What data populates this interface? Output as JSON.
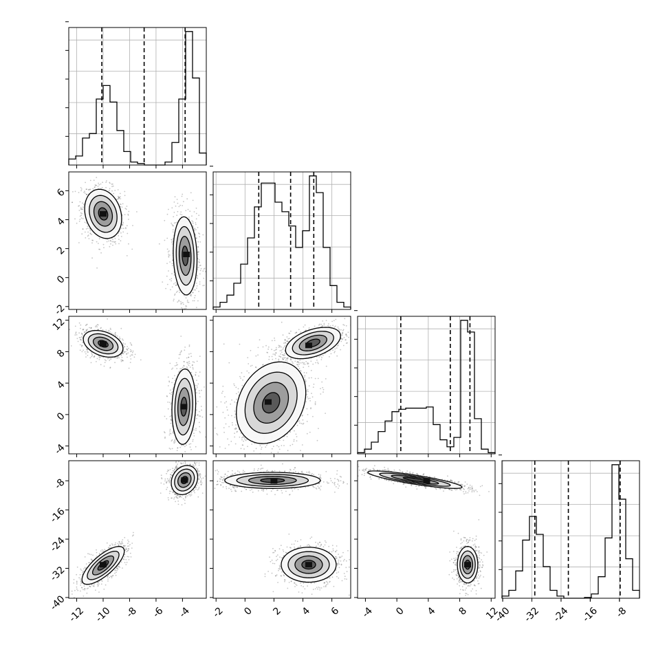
{
  "chart_data": {
    "type": "corner",
    "variables": 4,
    "colors": {
      "hist": "#000000",
      "scatter": "#555555",
      "grid": "#b0b0b0",
      "contour_fill": "#555555"
    },
    "grid": true,
    "axes": {
      "x1": {
        "ylim": [
          -12.6,
          -2.2
        ],
        "ticks": [
          "-12",
          "-10",
          "-8",
          "-6",
          "-4"
        ],
        "tick_values": [
          -12,
          -10,
          -8,
          -6,
          -4
        ]
      },
      "x2": {
        "ylim": [
          -2.2,
          7.3
        ],
        "ticks": [
          "-2",
          "0",
          "2",
          "4",
          "6"
        ],
        "tick_values": [
          -2,
          0,
          2,
          4,
          6
        ]
      },
      "x3": {
        "ylim": [
          -5,
          12.5
        ],
        "ticks": [
          "-4",
          "0",
          "4",
          "8",
          "12"
        ],
        "tick_values": [
          -4,
          0,
          4,
          8,
          12
        ]
      },
      "x4": {
        "ylim": [
          -40.2,
          -2.5
        ],
        "ticks": [
          "-40",
          "-32",
          "-24",
          "-16",
          "-8"
        ],
        "tick_values": [
          -40,
          -32,
          -24,
          -16,
          -8
        ]
      }
    },
    "diagonal": [
      {
        "var": "x1",
        "quantiles": [
          -10.1,
          -6.9,
          -3.8
        ],
        "bin_edges": [
          -12.6,
          -12.08,
          -11.56,
          -11.04,
          -10.52,
          -10.0,
          -9.48,
          -8.96,
          -8.44,
          -7.92,
          -7.4,
          -6.88,
          -6.36,
          -5.84,
          -5.32,
          -4.8,
          -4.28,
          -3.76,
          -3.24,
          -2.72,
          -2.2
        ],
        "counts": [
          0.4,
          0.6,
          1.8,
          2.1,
          4.4,
          5.3,
          4.2,
          2.3,
          0.9,
          0.2,
          0.1,
          0,
          0,
          0,
          0.2,
          1.5,
          4.4,
          8.9,
          5.8,
          0.8
        ]
      },
      {
        "var": "x2",
        "quantiles": [
          0.95,
          3.15,
          4.75
        ],
        "bin_edges": [
          -2.2,
          -1.725,
          -1.25,
          -0.775,
          -0.3,
          0.175,
          0.65,
          1.125,
          1.6,
          2.075,
          2.55,
          3.025,
          3.5,
          3.975,
          4.45,
          4.925,
          5.4,
          5.875,
          6.35,
          6.825,
          7.3
        ],
        "counts": [
          0.1,
          0.3,
          0.6,
          1.1,
          1.9,
          3.0,
          4.3,
          5.3,
          5.3,
          4.5,
          4.1,
          3.5,
          2.6,
          3.3,
          5.6,
          4.9,
          2.6,
          1.0,
          0.3,
          0.1
        ]
      },
      {
        "var": "x3",
        "quantiles": [
          0.5,
          6.8,
          9.3
        ],
        "bin_edges": [
          -5,
          -4.125,
          -3.25,
          -2.375,
          -1.5,
          -0.625,
          0.25,
          1.125,
          2.0,
          2.875,
          3.75,
          4.625,
          5.5,
          6.375,
          7.25,
          8.125,
          9.0,
          9.875,
          10.75,
          11.625,
          12.5
        ],
        "counts": [
          0.1,
          0.4,
          1.0,
          1.9,
          2.8,
          3.6,
          3.8,
          3.9,
          3.9,
          3.9,
          4.0,
          2.5,
          1.2,
          0.6,
          1.4,
          11.4,
          10.4,
          3.0,
          0.4,
          0.1
        ]
      },
      {
        "var": "x4",
        "quantiles": [
          -31.2,
          -22.0,
          -7.8
        ],
        "bin_edges": [
          -40.2,
          -38.315,
          -36.43,
          -34.545,
          -32.66,
          -30.775,
          -28.89,
          -27.005,
          -25.12,
          -23.235,
          -21.35,
          -19.465,
          -17.58,
          -15.695,
          -13.81,
          -11.925,
          -10.04,
          -8.155,
          -6.27,
          -4.385,
          -2.5
        ],
        "counts": [
          0.3,
          1.1,
          3.8,
          8.1,
          11.4,
          8.9,
          4.4,
          1.1,
          0.3,
          0,
          0,
          0,
          0.1,
          0.6,
          3.0,
          8.4,
          18.6,
          13.8,
          5.5,
          1.1
        ]
      }
    ],
    "pairs": [
      {
        "x": "x1",
        "y": "x2",
        "clusters": [
          {
            "cx": -10.0,
            "cy": 4.4,
            "sx": 0.7,
            "sy": 0.85,
            "rho": -0.2,
            "n": 900,
            "mode": [
              -10.0,
              4.4
            ]
          },
          {
            "cx": -3.8,
            "cy": 1.5,
            "sx": 0.45,
            "sy": 1.35,
            "rho": -0.1,
            "n": 900,
            "mode": [
              -3.7,
              1.6
            ]
          }
        ]
      },
      {
        "x": "x1",
        "y": "x3",
        "clusters": [
          {
            "cx": -10.0,
            "cy": 9.0,
            "sx": 0.75,
            "sy": 0.85,
            "rho": -0.35,
            "n": 900,
            "mode": [
              -10.0,
              9.0
            ]
          },
          {
            "cx": -3.9,
            "cy": 1.0,
            "sx": 0.45,
            "sy": 2.4,
            "rho": 0.1,
            "n": 900,
            "mode": [
              -3.9,
              1.0
            ]
          }
        ]
      },
      {
        "x": "x1",
        "y": "x4",
        "clusters": [
          {
            "cx": -10.0,
            "cy": -31.2,
            "sx": 0.8,
            "sy": 2.6,
            "rho": 0.75,
            "n": 900,
            "mode": [
              -10.0,
              -31.0
            ]
          },
          {
            "cx": -3.85,
            "cy": -7.8,
            "sx": 0.5,
            "sy": 2.0,
            "rho": 0.2,
            "n": 900,
            "mode": [
              -3.85,
              -7.8
            ]
          }
        ]
      },
      {
        "x": "x2",
        "y": "x3",
        "clusters": [
          {
            "cx": 1.8,
            "cy": 1.5,
            "sx": 1.2,
            "sy": 2.6,
            "rho": 0.25,
            "n": 1100,
            "mode": [
              1.6,
              1.6
            ]
          },
          {
            "cx": 4.7,
            "cy": 9.1,
            "sx": 0.95,
            "sy": 1.0,
            "rho": 0.45,
            "n": 900,
            "mode": [
              4.4,
              8.8
            ]
          }
        ]
      },
      {
        "x": "x2",
        "y": "x4",
        "clusters": [
          {
            "cx": 1.9,
            "cy": -7.9,
            "sx": 1.65,
            "sy": 1.1,
            "rho": 0.0,
            "n": 1000,
            "mode": [
              2.0,
              -8.0
            ]
          },
          {
            "cx": 4.4,
            "cy": -31.0,
            "sx": 0.95,
            "sy": 2.4,
            "rho": 0.0,
            "n": 900,
            "mode": [
              4.4,
              -31.0
            ]
          }
        ]
      },
      {
        "x": "x3",
        "y": "x4",
        "clusters": [
          {
            "cx": 2.3,
            "cy": -7.7,
            "sx": 3.0,
            "sy": 1.2,
            "rho": -0.85,
            "n": 1000,
            "mode": [
              3.8,
              -8.0
            ]
          },
          {
            "cx": 9.0,
            "cy": -31.0,
            "sx": 0.65,
            "sy": 2.5,
            "rho": 0.0,
            "n": 900,
            "mode": [
              9.0,
              -31.0
            ]
          }
        ]
      }
    ]
  }
}
